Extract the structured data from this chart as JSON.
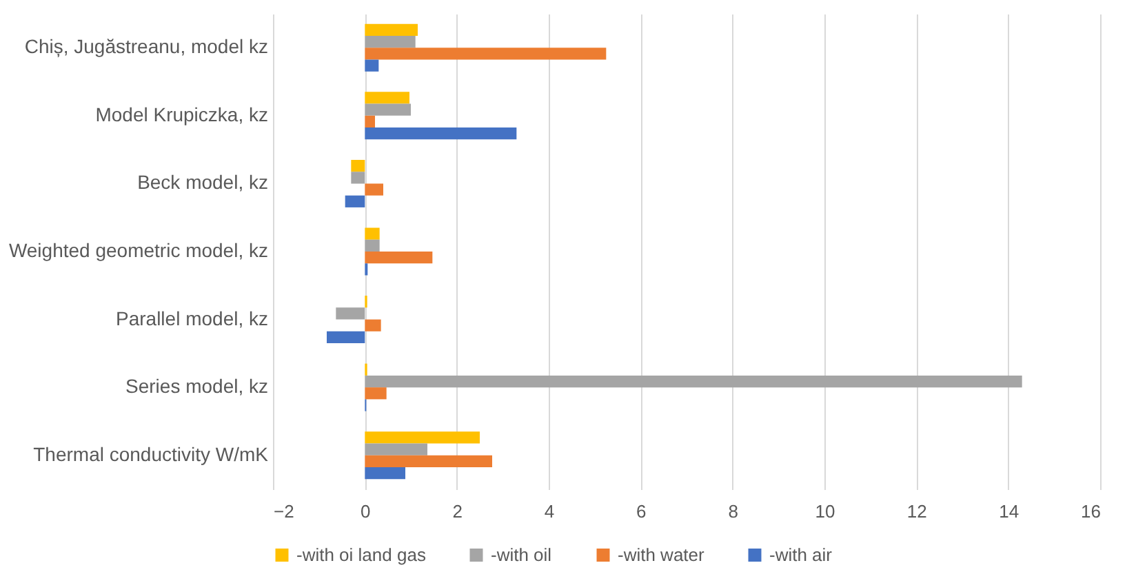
{
  "chart_data": {
    "type": "bar",
    "orientation": "horizontal",
    "categories": [
      "Chiș, Jugăstreanu, model kz",
      "Model Krupiczka, kz",
      "Beck  model, kz",
      "Weighted geometric model, kz",
      "Parallel model, kz",
      "Series model, kz",
      "Thermal conductivity W/mK"
    ],
    "series": [
      {
        "name": "-with oi land gas",
        "color": "#ffc000",
        "values": [
          1.15,
          0.97,
          -0.3,
          0.32,
          0.05,
          0.05,
          2.5
        ]
      },
      {
        "name": "-with oil",
        "color": "#a5a5a5",
        "values": [
          1.1,
          1.0,
          -0.3,
          0.32,
          -0.63,
          14.3,
          1.36
        ]
      },
      {
        "name": "-with water",
        "color": "#ed7d31",
        "values": [
          5.25,
          0.22,
          0.4,
          1.47,
          0.35,
          0.47,
          2.77
        ]
      },
      {
        "name": "-with air",
        "color": "#4472c4",
        "values": [
          0.3,
          3.3,
          -0.43,
          0.06,
          -0.83,
          0.03,
          0.88
        ]
      }
    ],
    "xlim": [
      -2,
      16
    ],
    "xticks": [
      -2,
      0,
      2,
      4,
      6,
      8,
      10,
      12,
      14,
      16
    ],
    "grid": "x",
    "legend": "bottom"
  }
}
